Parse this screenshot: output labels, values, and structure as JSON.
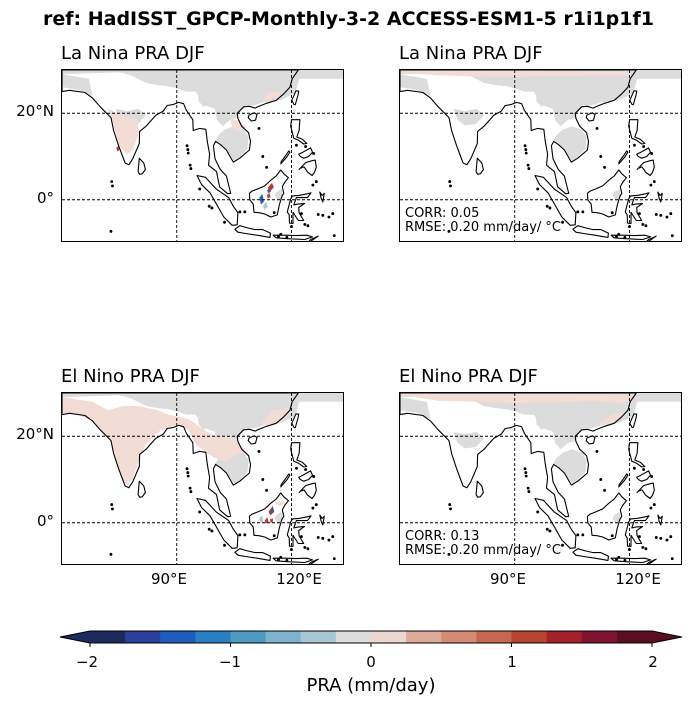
{
  "suptitle": "ref: HadISST_GPCP-Monthly-3-2 ACCESS-ESM1-5 r1i1p1f1",
  "panels": [
    {
      "title": "La Nina PRA DJF",
      "stats": null
    },
    {
      "title": "La Nina PRA DJF",
      "stats": {
        "corr": "CORR: 0.05",
        "rmse": "RMSE: 0.20 mm/day/ °C"
      }
    },
    {
      "title": "El Nino PRA DJF",
      "stats": null
    },
    {
      "title": "El Nino PRA DJF",
      "stats": {
        "corr": "CORR: 0.13",
        "rmse": "RMSE: 0.20 mm/day/ °C"
      }
    }
  ],
  "axes": {
    "lat_labels": [
      "20°N",
      "0°"
    ],
    "lon_labels": [
      "90°E",
      "120°E"
    ]
  },
  "colorbar": {
    "label": "PRA (mm/day)",
    "ticks": [
      "−2",
      "−1",
      "0",
      "1",
      "2"
    ],
    "range": [
      -2,
      2
    ],
    "colors": [
      "#1c2a5c",
      "#2a3f9a",
      "#1e5bbf",
      "#2a7fc0",
      "#4e9ac3",
      "#7fb3cd",
      "#a9c6d4",
      "#dcdcdc",
      "#ecd6d0",
      "#ddaa98",
      "#d48a74",
      "#c66750",
      "#b84432",
      "#a3212a",
      "#7e1430",
      "#5a0f20"
    ]
  },
  "map_colors": {
    "mask": "#dcdcdc",
    "land_pos": "#f3dcd3",
    "strong_pos": "#c0392b",
    "strong_neg": "#2a5fa8",
    "light_neg": "#a9c6d4"
  }
}
